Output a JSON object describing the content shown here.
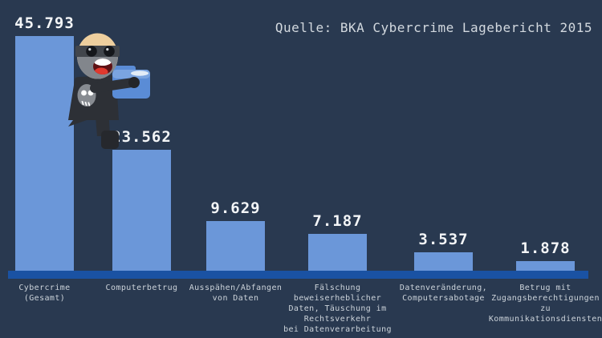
{
  "title": "Quelle: BKA Cybercrime Lagebericht 2015",
  "colors": {
    "background": "#293950",
    "bar": "#6b97d9",
    "axis_line": "#1a52a3",
    "title_text": "#d3d9df",
    "category_text": "#ccd3da",
    "value_text": "#f3f5f7"
  },
  "chart_data": {
    "type": "bar",
    "title": "Quelle: BKA Cybercrime Lagebericht 2015",
    "categories": [
      "Cybercrime\n(Gesamt)",
      "Computerbetrug",
      "Ausspähen/Abfangen\nvon Daten",
      "Fälschung\nbeweiserheblicher\nDaten, Täuschung im\nRechtsverkehr\nbei Datenverarbeitung",
      "Datenveränderung,\nComputersabotage",
      "Betrug mit\nZugangsberechtigungen\nzu\nKommunikationsdiensten"
    ],
    "values": [
      45793,
      23562,
      9629,
      7187,
      3537,
      1878
    ],
    "value_labels": [
      "45.793",
      "23.562",
      "9.629",
      "7.187",
      "3.537",
      "1.878"
    ],
    "xlabel": "",
    "ylabel": "",
    "ylim": [
      0,
      46000
    ],
    "grid": false,
    "legend": null,
    "bar_color": "#6b97d9",
    "axis_line_color": "#1a52a3"
  },
  "decoration": {
    "character": "cartoon masked burglar with skull shirt stealing a blue data folder"
  }
}
